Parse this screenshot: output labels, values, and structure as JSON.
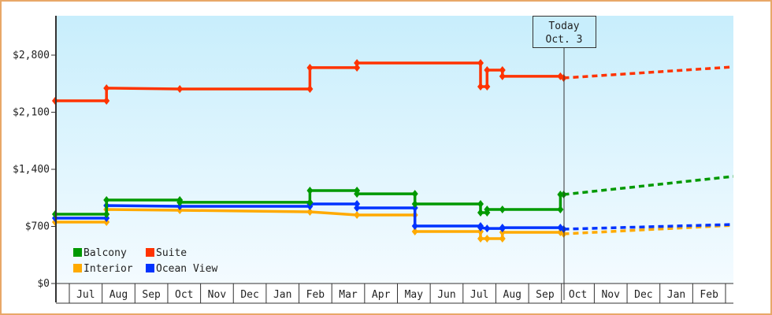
{
  "chart_data": {
    "type": "line",
    "step": true,
    "ylim": [
      0,
      3400
    ],
    "y_ticks": [
      {
        "value": 0,
        "label": "$0"
      },
      {
        "value": 700,
        "label": "$700"
      },
      {
        "value": 1400,
        "label": "$1,400"
      },
      {
        "value": 2100,
        "label": "$2,100"
      },
      {
        "value": 2800,
        "label": "$2,800"
      }
    ],
    "x_months": [
      "Jul",
      "Aug",
      "Sep",
      "Oct",
      "Nov",
      "Dec",
      "Jan",
      "Feb",
      "Mar",
      "Apr",
      "May",
      "Jun",
      "Jul",
      "Aug",
      "Sep",
      "Oct",
      "Nov",
      "Dec",
      "Jan",
      "Feb"
    ],
    "x_start": "Y1-06-18",
    "x_end": "Y3-03-08",
    "today": {
      "line1": "Today",
      "line2": "Oct. 3",
      "date": "Y2-10-03"
    },
    "legend": {
      "placement": "bottom-left"
    },
    "grid": false,
    "background": {
      "top": "#c8eefc",
      "bottom": "#f4fbff"
    },
    "series": [
      {
        "name": "Suite",
        "color": "#ff3300",
        "points": [
          [
            "Y1-06-18",
            2240
          ],
          [
            "Y1-08-05",
            2240
          ],
          [
            "Y1-08-05",
            2395
          ],
          [
            "Y1-10-12",
            2385
          ],
          [
            "Y2-02-11",
            2385
          ],
          [
            "Y2-02-11",
            2646
          ],
          [
            "Y2-03-24",
            2646
          ],
          [
            "Y2-03-24",
            2703
          ],
          [
            "Y2-07-17",
            2703
          ],
          [
            "Y2-07-17",
            2414
          ],
          [
            "Y2-07-23",
            2414
          ],
          [
            "Y2-07-23",
            2617
          ],
          [
            "Y2-08-07",
            2617
          ],
          [
            "Y2-08-07",
            2540
          ],
          [
            "Y2-09-30",
            2540
          ],
          [
            "Y2-10-03",
            2520
          ]
        ],
        "forecast": [
          [
            "Y2-10-03",
            2520
          ],
          [
            "Y3-03-08",
            2655
          ]
        ]
      },
      {
        "name": "Balcony",
        "color": "#009900",
        "points": [
          [
            "Y1-06-18",
            850
          ],
          [
            "Y1-08-05",
            850
          ],
          [
            "Y1-08-05",
            1023
          ],
          [
            "Y1-10-12",
            1023
          ],
          [
            "Y1-10-12",
            995
          ],
          [
            "Y2-02-11",
            995
          ],
          [
            "Y2-02-11",
            1139
          ],
          [
            "Y2-03-24",
            1139
          ],
          [
            "Y2-03-24",
            1100
          ],
          [
            "Y2-05-17",
            1100
          ],
          [
            "Y2-05-17",
            975
          ],
          [
            "Y2-07-17",
            975
          ],
          [
            "Y2-07-17",
            869
          ],
          [
            "Y2-07-23",
            869
          ],
          [
            "Y2-07-23",
            908
          ],
          [
            "Y2-08-07",
            908
          ],
          [
            "Y2-09-30",
            908
          ],
          [
            "Y2-09-30",
            1091
          ],
          [
            "Y2-10-03",
            1091
          ]
        ],
        "forecast": [
          [
            "Y2-10-03",
            1091
          ],
          [
            "Y3-03-08",
            1313
          ]
        ]
      },
      {
        "name": "Interior",
        "color": "#ffaa00",
        "points": [
          [
            "Y1-06-18",
            753
          ],
          [
            "Y1-08-05",
            753
          ],
          [
            "Y1-08-05",
            908
          ],
          [
            "Y1-10-12",
            898
          ],
          [
            "Y2-02-11",
            879
          ],
          [
            "Y2-03-24",
            840
          ],
          [
            "Y2-05-17",
            840
          ],
          [
            "Y2-05-17",
            637
          ],
          [
            "Y2-07-17",
            637
          ],
          [
            "Y2-07-17",
            550
          ],
          [
            "Y2-07-23",
            550
          ],
          [
            "Y2-08-07",
            550
          ],
          [
            "Y2-08-07",
            628
          ],
          [
            "Y2-09-30",
            628
          ],
          [
            "Y2-10-03",
            608
          ]
        ],
        "forecast": [
          [
            "Y2-10-03",
            608
          ],
          [
            "Y3-03-08",
            714
          ]
        ]
      },
      {
        "name": "Ocean View",
        "color": "#0033ff",
        "points": [
          [
            "Y1-06-18",
            801
          ],
          [
            "Y1-08-05",
            801
          ],
          [
            "Y1-08-05",
            956
          ],
          [
            "Y1-10-12",
            946
          ],
          [
            "Y2-02-11",
            946
          ],
          [
            "Y2-02-11",
            975
          ],
          [
            "Y2-03-24",
            975
          ],
          [
            "Y2-03-24",
            927
          ],
          [
            "Y2-05-17",
            927
          ],
          [
            "Y2-05-17",
            705
          ],
          [
            "Y2-07-17",
            705
          ],
          [
            "Y2-07-17",
            685
          ],
          [
            "Y2-07-23",
            675
          ],
          [
            "Y2-08-07",
            675
          ],
          [
            "Y2-08-07",
            685
          ],
          [
            "Y2-09-30",
            685
          ],
          [
            "Y2-10-03",
            666
          ]
        ],
        "forecast": [
          [
            "Y2-10-03",
            666
          ],
          [
            "Y3-03-08",
            724
          ]
        ]
      }
    ],
    "legend_order": [
      "Balcony",
      "Suite",
      "Interior",
      "Ocean View"
    ]
  }
}
